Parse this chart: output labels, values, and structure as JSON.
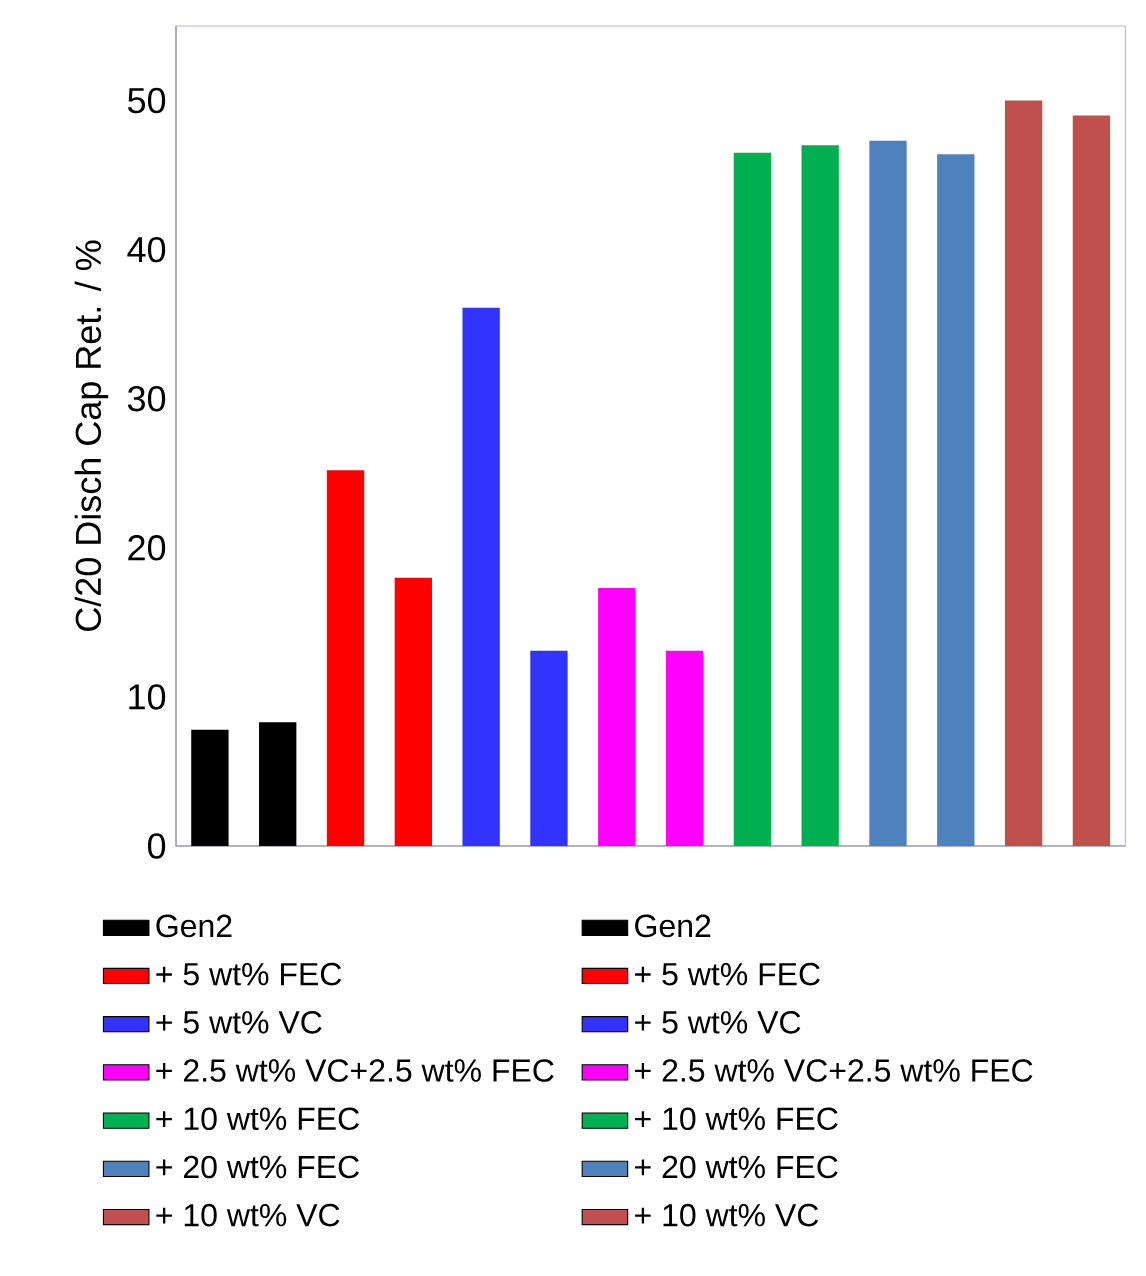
{
  "chart_data": {
    "type": "bar",
    "ylabel": "C/20 Disch Cap Ret. / %",
    "categories": [
      null,
      null,
      null,
      null,
      null,
      null,
      null,
      null,
      null,
      null,
      null,
      null,
      null,
      null
    ],
    "ylim": [
      0,
      55
    ],
    "yticks": [
      0,
      10,
      20,
      30,
      40,
      50
    ],
    "legend": "bottom",
    "series": [
      {
        "name": "Gen2",
        "color": "#000000",
        "values": [
          7.8,
          null,
          null,
          null,
          null,
          null,
          null,
          null,
          null,
          null,
          null,
          null,
          null,
          null
        ]
      },
      {
        "name": "Gen2",
        "color": "#000000",
        "values": [
          null,
          8.3,
          null,
          null,
          null,
          null,
          null,
          null,
          null,
          null,
          null,
          null,
          null,
          null
        ]
      },
      {
        "name": "+ 5 wt% FEC",
        "color": "#ff0000",
        "values": [
          null,
          null,
          25.2,
          null,
          null,
          null,
          null,
          null,
          null,
          null,
          null,
          null,
          null,
          null
        ]
      },
      {
        "name": "+ 5 wt% FEC",
        "color": "#ff0000",
        "values": [
          null,
          null,
          null,
          18.0,
          null,
          null,
          null,
          null,
          null,
          null,
          null,
          null,
          null,
          null
        ]
      },
      {
        "name": "+ 5 wt% VC",
        "color": "#3333ff",
        "values": [
          null,
          null,
          null,
          null,
          36.1,
          null,
          null,
          null,
          null,
          null,
          null,
          null,
          null,
          null
        ]
      },
      {
        "name": "+ 5 wt% VC",
        "color": "#3333ff",
        "values": [
          null,
          null,
          null,
          null,
          null,
          13.1,
          null,
          null,
          null,
          null,
          null,
          null,
          null,
          null
        ]
      },
      {
        "name": "+ 2.5 wt% VC+2.5 wt% FEC",
        "color": "#ff00ff",
        "values": [
          null,
          null,
          null,
          null,
          null,
          null,
          17.3,
          null,
          null,
          null,
          null,
          null,
          null,
          null
        ]
      },
      {
        "name": "+ 2.5 wt% VC+2.5 wt% FEC",
        "color": "#ff00ff",
        "values": [
          null,
          null,
          null,
          null,
          null,
          null,
          null,
          13.1,
          null,
          null,
          null,
          null,
          null,
          null
        ]
      },
      {
        "name": "+ 10 wt% FEC",
        "color": "#00b050",
        "values": [
          null,
          null,
          null,
          null,
          null,
          null,
          null,
          null,
          46.5,
          null,
          null,
          null,
          null,
          null
        ]
      },
      {
        "name": "+ 10 wt% FEC",
        "color": "#00b050",
        "values": [
          null,
          null,
          null,
          null,
          null,
          null,
          null,
          null,
          null,
          47.0,
          null,
          null,
          null,
          null
        ]
      },
      {
        "name": "+ 20 wt% FEC",
        "color": "#4f81bd",
        "values": [
          null,
          null,
          null,
          null,
          null,
          null,
          null,
          null,
          null,
          null,
          47.3,
          null,
          null,
          null
        ]
      },
      {
        "name": "+ 20 wt% FEC",
        "color": "#4f81bd",
        "values": [
          null,
          null,
          null,
          null,
          null,
          null,
          null,
          null,
          null,
          null,
          null,
          46.4,
          null,
          null
        ]
      },
      {
        "name": "+ 10 wt% VC",
        "color": "#c0504d",
        "values": [
          null,
          null,
          null,
          null,
          null,
          null,
          null,
          null,
          null,
          null,
          null,
          null,
          50.0,
          null
        ]
      },
      {
        "name": "+ 10 wt% VC",
        "color": "#c0504d",
        "values": [
          null,
          null,
          null,
          null,
          null,
          null,
          null,
          null,
          null,
          null,
          null,
          null,
          null,
          49.0
        ]
      }
    ]
  }
}
